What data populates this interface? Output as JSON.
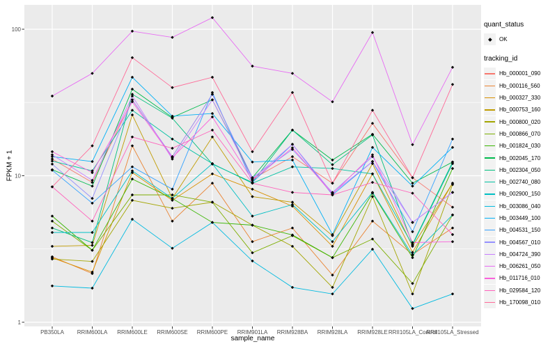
{
  "figure": {
    "bg": "#FFFFFF",
    "panel_bg": "#EBEBEB",
    "grid_color": "#FFFFFF",
    "tick_color": "#333333",
    "axis_text_color": "#4D4D4D",
    "legend_key_bg": "#F2F2F2",
    "marker_color": "#000000"
  },
  "legend": {
    "quant_title": "quant_status",
    "quant_items": [
      {
        "label": "OK",
        "marker": "black-diamond"
      }
    ],
    "tracking_title": "tracking_id"
  },
  "chart_data": {
    "type": "line",
    "title": "",
    "xlabel": "sample_name",
    "ylabel": "FPKM + 1",
    "y_scale": "log10",
    "grid": "white major and minor on gray panel",
    "legend_position": "right",
    "marker": "black-diamond",
    "y_ticks": [
      {
        "label": "1",
        "value": 1
      },
      {
        "label": "10",
        "value": 10
      },
      {
        "label": "100",
        "value": 100
      }
    ],
    "y_minor_breaks": [
      3.1623,
      31.623
    ],
    "ylim": [
      0.94,
      146
    ],
    "categories": [
      "PB350LA",
      "RRIM600LA",
      "RRIM600LE",
      "RRIM600SE",
      "RRIM600PE",
      "RRIM901LA",
      "RRIM928BA",
      "RRIM928LA",
      "RRIM928LE",
      "RRII105LA_Control",
      "RRII105LA_Stressed"
    ],
    "series": [
      {
        "name": "Hb_000001_090",
        "color": "#F8766D",
        "values": [
          13.0,
          9.0,
          33.0,
          13.5,
          36.0,
          9.5,
          13.5,
          8.9,
          22.8,
          9.7,
          6.1
        ]
      },
      {
        "name": "Hb_000116_560",
        "color": "#EA8331",
        "values": [
          2.8,
          2.15,
          16.0,
          4.9,
          8.9,
          3.55,
          4.4,
          2.1,
          4.9,
          2.9,
          4.4
        ]
      },
      {
        "name": "Hb_000327_330",
        "color": "#D89000",
        "values": [
          2.75,
          2.2,
          10.5,
          6.8,
          10.3,
          8.1,
          6.2,
          3.3,
          10.3,
          3.0,
          8.9
        ]
      },
      {
        "name": "Hb_000753_160",
        "color": "#C09B00",
        "values": [
          3.3,
          3.35,
          26.0,
          7.0,
          18.4,
          7.2,
          6.6,
          3.9,
          12.1,
          3.3,
          8.9
        ]
      },
      {
        "name": "Hb_000800_020",
        "color": "#A3A500",
        "values": [
          2.7,
          2.6,
          6.8,
          6.0,
          6.6,
          4.6,
          3.3,
          1.73,
          7.2,
          1.56,
          8.7
        ]
      },
      {
        "name": "Hb_000866_070",
        "color": "#7CAE00",
        "values": [
          4.9,
          3.1,
          7.4,
          7.4,
          6.6,
          2.98,
          3.9,
          2.76,
          3.7,
          1.84,
          5.4
        ]
      },
      {
        "name": "Hb_001824_030",
        "color": "#39B600",
        "values": [
          5.3,
          3.1,
          9.5,
          7.0,
          4.8,
          4.6,
          3.94,
          2.76,
          7.6,
          2.76,
          11.2
        ]
      },
      {
        "name": "Hb_002045_170",
        "color": "#00BB4E",
        "values": [
          11.0,
          8.5,
          39.0,
          25.0,
          33.0,
          9.7,
          20.5,
          12.8,
          19.2,
          8.9,
          12.4
        ]
      },
      {
        "name": "Hb_002304_050",
        "color": "#00BF7D",
        "values": [
          4.4,
          3.5,
          36.0,
          24.7,
          12.0,
          9.0,
          20.5,
          11.9,
          19.0,
          3.4,
          12.4
        ]
      },
      {
        "name": "Hb_002740_080",
        "color": "#00C1A3",
        "values": [
          12.6,
          10.8,
          28.0,
          17.8,
          12.1,
          8.9,
          11.5,
          11.2,
          10.3,
          3.36,
          12.1
        ]
      },
      {
        "name": "Hb_002900_150",
        "color": "#00BFC4",
        "values": [
          4.1,
          4.1,
          10.8,
          7.0,
          12.1,
          5.3,
          6.35,
          3.55,
          7.7,
          2.87,
          5.4
        ]
      },
      {
        "name": "Hb_003086_040",
        "color": "#00BAE0",
        "values": [
          1.77,
          1.71,
          5.05,
          3.2,
          4.8,
          2.62,
          1.73,
          1.56,
          3.15,
          1.24,
          1.56
        ]
      },
      {
        "name": "Hb_003449_100",
        "color": "#00B0F6",
        "values": [
          13.5,
          12.5,
          47.0,
          25.5,
          26.6,
          12.4,
          12.8,
          3.97,
          15.6,
          8.5,
          15.6
        ]
      },
      {
        "name": "Hb_004531_150",
        "color": "#35A2FF",
        "values": [
          10.9,
          6.5,
          11.5,
          8.1,
          37.0,
          9.0,
          16.4,
          7.4,
          12.5,
          4.15,
          17.8
        ]
      },
      {
        "name": "Hb_004567_010",
        "color": "#9590FF",
        "values": [
          12.0,
          7.0,
          33.0,
          13.5,
          36.0,
          9.7,
          15.1,
          7.7,
          13.5,
          4.8,
          7.7
        ]
      },
      {
        "name": "Hb_004724_390",
        "color": "#C77CFF",
        "values": [
          13.9,
          9.3,
          35.0,
          13.0,
          33.0,
          9.5,
          16.4,
          7.6,
          12.5,
          4.8,
          7.7
        ]
      },
      {
        "name": "Hb_006261_050",
        "color": "#E76BF3",
        "values": [
          35.0,
          50.0,
          97.0,
          88.0,
          120.0,
          56.0,
          50.0,
          32.0,
          95.0,
          16.3,
          55.0
        ]
      },
      {
        "name": "Hb_011716_010",
        "color": "#FA62DB",
        "values": [
          14.6,
          10.5,
          32.0,
          13.3,
          25.2,
          9.3,
          15.5,
          7.5,
          13.9,
          3.5,
          3.55
        ]
      },
      {
        "name": "Hb_029584_120",
        "color": "#FF62BC",
        "values": [
          8.4,
          4.9,
          18.4,
          15.4,
          20.5,
          8.9,
          7.7,
          7.4,
          9.0,
          7.6,
          3.97
        ]
      },
      {
        "name": "Hb_170098_010",
        "color": "#FF6A98",
        "values": [
          8.4,
          16.0,
          64.0,
          40.0,
          47.0,
          14.6,
          37.0,
          8.9,
          28.0,
          9.7,
          42.0
        ]
      }
    ]
  }
}
